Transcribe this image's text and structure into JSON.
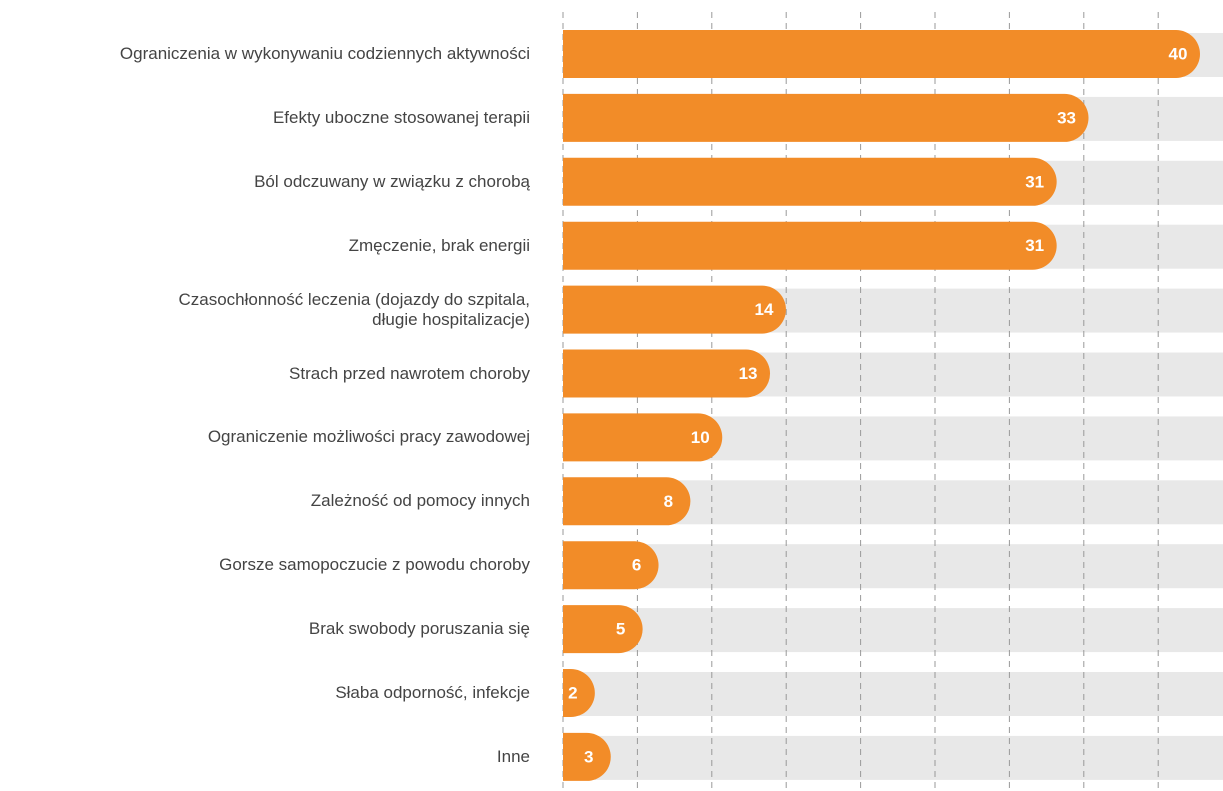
{
  "chart_data": {
    "type": "bar",
    "orientation": "horizontal",
    "categories": [
      "Ograniczenia w wykonywaniu codziennych aktywności",
      "Efekty uboczne stosowanej terapii",
      "Ból odczuwany w związku z chorobą",
      "Zmęczenie, brak energii",
      "Czasochłonność leczenia (dojazdy do szpitala,\ndługie hospitalizacje)",
      "Strach przed nawrotem choroby",
      "Ograniczenie możliwości pracy zawodowej",
      "Zależność od pomocy innych",
      "Gorsze samopoczucie z powodu choroby",
      "Brak swobody poruszania się",
      "Słaba odporność, infekcje",
      "Inne"
    ],
    "values": [
      40,
      33,
      31,
      31,
      14,
      13,
      10,
      8,
      6,
      5,
      2,
      3
    ],
    "color": "#f28c28",
    "xlim": [
      0,
      40
    ],
    "grid": true
  }
}
